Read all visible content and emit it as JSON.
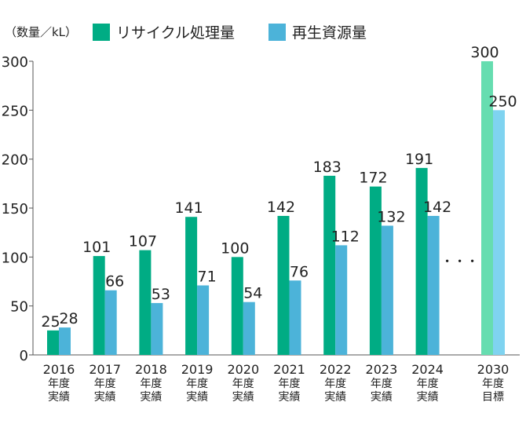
{
  "chart_data": {
    "type": "bar",
    "unit_label": "（数量／kL）",
    "categories": [
      [
        "2016",
        "年度",
        "実績"
      ],
      [
        "2017",
        "年度",
        "実績"
      ],
      [
        "2018",
        "年度",
        "実績"
      ],
      [
        "2019",
        "年度",
        "実績"
      ],
      [
        "2020",
        "年度",
        "実績"
      ],
      [
        "2021",
        "年度",
        "実績"
      ],
      [
        "2022",
        "年度",
        "実績"
      ],
      [
        "2023",
        "年度",
        "実績"
      ],
      [
        "2024",
        "年度",
        "実績"
      ],
      [
        "2030",
        "年度",
        "目標"
      ]
    ],
    "series": [
      {
        "name": "リサイクル処理量",
        "color": "#00ac84",
        "target_color": "#66ddb0",
        "values": [
          25,
          101,
          107,
          141,
          100,
          142,
          183,
          172,
          191,
          300
        ]
      },
      {
        "name": "再生資源量",
        "color": "#4cb3d9",
        "target_color": "#7fd3f0",
        "values": [
          28,
          66,
          53,
          71,
          54,
          76,
          112,
          132,
          142,
          250
        ]
      }
    ],
    "gap_marker": "・・・",
    "ylim": [
      0,
      300
    ],
    "yticks": [
      0,
      50,
      100,
      150,
      200,
      250,
      300
    ],
    "grid": false,
    "legend_position": "top"
  }
}
